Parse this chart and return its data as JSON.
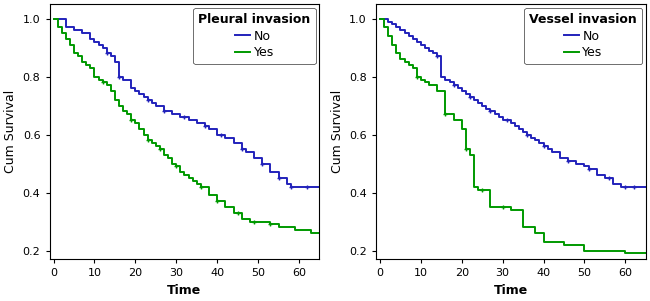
{
  "plot1": {
    "title": "Pleural invasion",
    "ylabel": "Cum Survival",
    "xlabel": "Time",
    "ylim": [
      0.17,
      1.05
    ],
    "xlim": [
      -1,
      65
    ],
    "yticks": [
      0.2,
      0.4,
      0.6,
      0.8,
      1.0
    ],
    "xticks": [
      0,
      10,
      20,
      30,
      40,
      50,
      60
    ],
    "blue_times": [
      0,
      1,
      3,
      5,
      7,
      9,
      10,
      11,
      12,
      13,
      14,
      15,
      16,
      17,
      19,
      20,
      21,
      22,
      23,
      24,
      25,
      27,
      29,
      31,
      33,
      35,
      37,
      38,
      40,
      42,
      44,
      46,
      47,
      49,
      51,
      53,
      55,
      57,
      58,
      63
    ],
    "blue_surv": [
      1.0,
      1.0,
      0.97,
      0.96,
      0.95,
      0.93,
      0.92,
      0.91,
      0.9,
      0.88,
      0.87,
      0.85,
      0.8,
      0.79,
      0.76,
      0.75,
      0.74,
      0.73,
      0.72,
      0.71,
      0.7,
      0.68,
      0.67,
      0.66,
      0.65,
      0.64,
      0.63,
      0.62,
      0.6,
      0.59,
      0.57,
      0.55,
      0.54,
      0.52,
      0.5,
      0.47,
      0.45,
      0.43,
      0.42,
      0.42
    ],
    "green_times": [
      0,
      1,
      2,
      3,
      4,
      5,
      6,
      7,
      8,
      9,
      10,
      11,
      12,
      13,
      14,
      15,
      16,
      17,
      18,
      19,
      20,
      21,
      22,
      23,
      24,
      25,
      26,
      27,
      28,
      29,
      30,
      31,
      32,
      33,
      34,
      35,
      36,
      38,
      40,
      42,
      44,
      46,
      48,
      50,
      52,
      53,
      55,
      57,
      59,
      63
    ],
    "green_surv": [
      1.0,
      0.97,
      0.95,
      0.93,
      0.91,
      0.88,
      0.87,
      0.85,
      0.84,
      0.83,
      0.8,
      0.79,
      0.78,
      0.77,
      0.75,
      0.72,
      0.7,
      0.68,
      0.67,
      0.65,
      0.64,
      0.62,
      0.6,
      0.58,
      0.57,
      0.56,
      0.55,
      0.53,
      0.52,
      0.5,
      0.49,
      0.47,
      0.46,
      0.45,
      0.44,
      0.43,
      0.42,
      0.39,
      0.37,
      0.35,
      0.33,
      0.31,
      0.3,
      0.3,
      0.3,
      0.29,
      0.28,
      0.28,
      0.27,
      0.26
    ],
    "blue_cens": [
      13,
      16,
      23,
      27,
      32,
      37,
      41,
      46,
      51,
      55,
      58,
      62
    ],
    "green_cens": [
      12,
      19,
      23,
      26,
      30,
      36,
      40,
      45,
      49,
      53
    ],
    "legend_labels": [
      "No",
      "Yes"
    ],
    "blue_color": "#2222bb",
    "green_color": "#009900"
  },
  "plot2": {
    "title": "Vessel invasion",
    "ylabel": "Cum Survival",
    "xlabel": "Time",
    "ylim": [
      0.17,
      1.05
    ],
    "xlim": [
      -1,
      65
    ],
    "yticks": [
      0.2,
      0.4,
      0.6,
      0.8,
      1.0
    ],
    "xticks": [
      0,
      10,
      20,
      30,
      40,
      50,
      60
    ],
    "blue_times": [
      0,
      1,
      2,
      3,
      4,
      5,
      6,
      7,
      8,
      9,
      10,
      11,
      12,
      13,
      14,
      15,
      16,
      17,
      18,
      19,
      20,
      21,
      22,
      23,
      24,
      25,
      26,
      27,
      28,
      29,
      30,
      31,
      32,
      33,
      34,
      35,
      36,
      37,
      38,
      39,
      40,
      41,
      42,
      44,
      46,
      48,
      50,
      51,
      53,
      55,
      57,
      59,
      63
    ],
    "blue_surv": [
      1.0,
      1.0,
      0.99,
      0.98,
      0.97,
      0.96,
      0.95,
      0.94,
      0.93,
      0.92,
      0.91,
      0.9,
      0.89,
      0.88,
      0.87,
      0.8,
      0.79,
      0.78,
      0.77,
      0.76,
      0.75,
      0.74,
      0.73,
      0.72,
      0.71,
      0.7,
      0.69,
      0.68,
      0.67,
      0.66,
      0.65,
      0.65,
      0.64,
      0.63,
      0.62,
      0.61,
      0.6,
      0.59,
      0.58,
      0.57,
      0.56,
      0.55,
      0.54,
      0.52,
      0.51,
      0.5,
      0.49,
      0.48,
      0.46,
      0.45,
      0.43,
      0.42,
      0.42
    ],
    "green_times": [
      0,
      1,
      2,
      3,
      4,
      5,
      6,
      7,
      8,
      9,
      10,
      11,
      12,
      14,
      16,
      18,
      20,
      21,
      22,
      23,
      24,
      27,
      30,
      32,
      35,
      38,
      40,
      45,
      50,
      57,
      60,
      63
    ],
    "green_surv": [
      1.0,
      0.97,
      0.94,
      0.91,
      0.88,
      0.86,
      0.85,
      0.84,
      0.83,
      0.8,
      0.79,
      0.78,
      0.77,
      0.75,
      0.67,
      0.65,
      0.62,
      0.55,
      0.53,
      0.42,
      0.41,
      0.35,
      0.35,
      0.34,
      0.28,
      0.26,
      0.23,
      0.22,
      0.2,
      0.2,
      0.19,
      0.19
    ],
    "blue_cens": [
      14,
      18,
      22,
      27,
      31,
      36,
      40,
      46,
      51,
      56,
      60,
      62
    ],
    "green_cens": [
      9,
      16,
      21,
      25,
      30
    ],
    "legend_labels": [
      "No",
      "Yes"
    ],
    "blue_color": "#2222bb",
    "green_color": "#009900"
  },
  "bg_color": "#ffffff",
  "figure_bg": "#ffffff"
}
